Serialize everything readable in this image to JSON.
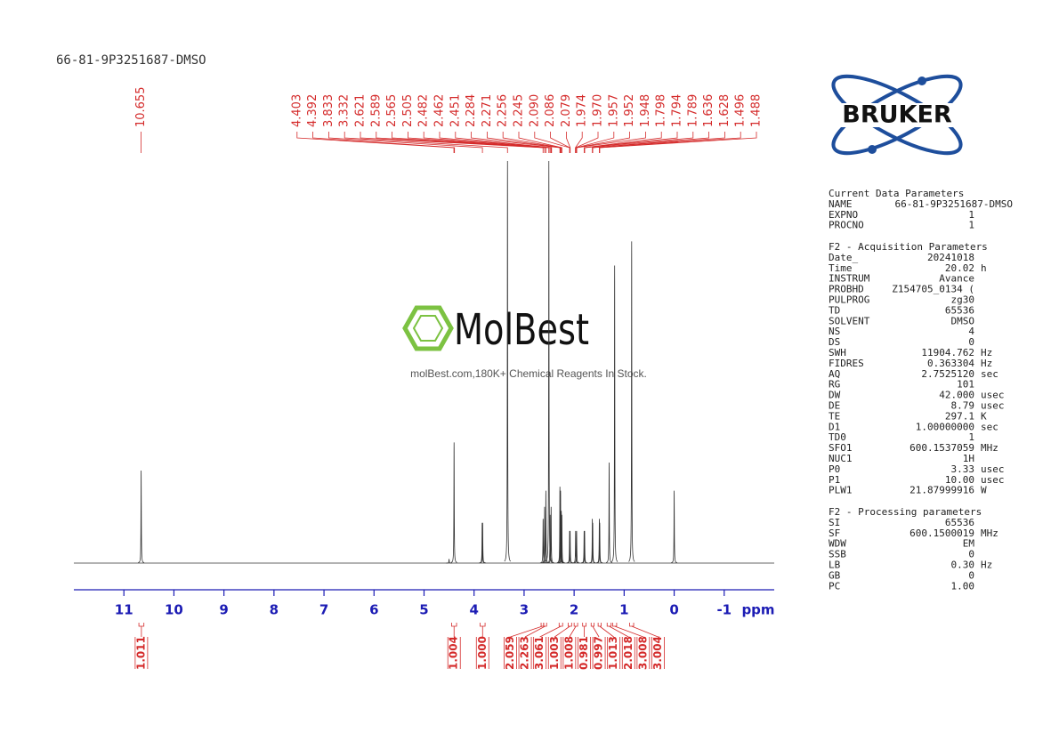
{
  "header": {
    "title": "66-81-9P3251687-DMSO"
  },
  "logo": {
    "text": "BRUKER"
  },
  "watermark": {
    "brand": "MolBest",
    "tagline": "molBest.com,180K+ Chemical Reagents In Stock."
  },
  "chart_data": {
    "type": "nmr",
    "x_label": "ppm",
    "xlim": [
      12,
      -2
    ],
    "ylim": [
      0,
      100
    ],
    "xticks": [
      11,
      10,
      9,
      8,
      7,
      6,
      5,
      4,
      3,
      2,
      1,
      0,
      -1
    ],
    "color": "#333333",
    "label_color": "#d42a2a",
    "axis_color": "#1c1cb4",
    "peak_label_groups": [
      [
        10.655
      ],
      [
        4.403,
        4.392,
        3.833,
        3.332,
        2.621,
        2.589,
        2.565,
        2.505,
        2.482,
        2.462,
        2.451,
        2.284,
        2.271,
        2.256,
        2.245,
        {
          "value": 2.09,
          "label": "2.090"
        },
        2.086,
        2.079,
        1.974,
        {
          "value": 1.97,
          "label": "1.970"
        },
        1.957,
        1.952,
        1.948,
        1.798,
        1.794,
        1.789,
        1.636,
        1.628,
        1.496,
        1.488
      ]
    ],
    "integral_groups": [
      [
        {
          "value": 1.011,
          "from": 10.7,
          "to": 10.6
        }
      ],
      [
        {
          "value": 1.004,
          "from": 4.45,
          "to": 4.35
        }
      ],
      [
        {
          "value": 1,
          "label": "1.000",
          "from": 3.88,
          "to": 3.78
        }
      ],
      [
        {
          "value": 2.059,
          "from": 2.66,
          "to": 2.61
        },
        {
          "value": 2.263,
          "from": 2.61,
          "to": 2.55
        },
        {
          "value": 3.061,
          "from": 2.3,
          "to": 2.23
        },
        {
          "value": 1.003,
          "from": 2.12,
          "to": 2.05
        },
        {
          "value": 1.008,
          "from": 2.0,
          "to": 1.93
        },
        {
          "value": 0.981,
          "from": 1.83,
          "to": 1.76
        },
        {
          "value": 0.997,
          "from": 1.66,
          "to": 1.6
        },
        {
          "value": 1.013,
          "from": 1.52,
          "to": 1.46
        },
        {
          "value": 2.018,
          "from": 1.34,
          "to": 1.26
        },
        {
          "value": 3.008,
          "from": 1.23,
          "to": 1.15
        },
        {
          "value": 3.004,
          "from": 0.89,
          "to": 0.81
        }
      ]
    ],
    "signals": [
      {
        "ppm": 10.655,
        "height": 23
      },
      {
        "ppm": 4.5,
        "height": 1
      },
      {
        "ppm": 4.4,
        "height": 30
      },
      {
        "ppm": 3.838,
        "height": 10
      },
      {
        "ppm": 3.828,
        "height": 10
      },
      {
        "ppm": 3.332,
        "height": 100
      },
      {
        "ppm": 2.62,
        "height": 11
      },
      {
        "ppm": 2.59,
        "height": 14
      },
      {
        "ppm": 2.565,
        "height": 18
      },
      {
        "ppm": 2.505,
        "height": 100
      },
      {
        "ppm": 2.48,
        "height": 12
      },
      {
        "ppm": 2.46,
        "height": 14
      },
      {
        "ppm": 2.284,
        "height": 19
      },
      {
        "ppm": 2.271,
        "height": 18
      },
      {
        "ppm": 2.256,
        "height": 13
      },
      {
        "ppm": 2.245,
        "height": 12
      },
      {
        "ppm": 2.09,
        "height": 8
      },
      {
        "ppm": 2.08,
        "height": 8
      },
      {
        "ppm": 1.97,
        "height": 8
      },
      {
        "ppm": 1.95,
        "height": 8
      },
      {
        "ppm": 1.8,
        "height": 8
      },
      {
        "ppm": 1.79,
        "height": 8
      },
      {
        "ppm": 1.636,
        "height": 11
      },
      {
        "ppm": 1.628,
        "height": 10
      },
      {
        "ppm": 1.496,
        "height": 11
      },
      {
        "ppm": 1.488,
        "height": 10
      },
      {
        "ppm": 1.3,
        "height": 25
      },
      {
        "ppm": 1.19,
        "height": 74
      },
      {
        "ppm": 0.85,
        "height": 80
      },
      {
        "ppm": 0.0,
        "height": 18
      }
    ]
  },
  "parameters": [
    {
      "title": "Current Data Parameters",
      "rows": [
        [
          "NAME",
          "66-81-9P3251687-DMSO"
        ],
        [
          "EXPNO",
          "1"
        ],
        [
          "PROCNO",
          "1"
        ]
      ]
    },
    {
      "title": "F2 - Acquisition Parameters",
      "rows": [
        [
          "Date_",
          "20241018"
        ],
        [
          "Time",
          "20.02",
          "h"
        ],
        [
          "INSTRUM",
          "Avance"
        ],
        [
          "PROBHD",
          "Z154705_0134 ("
        ],
        [
          "PULPROG",
          "zg30"
        ],
        [
          "TD",
          "65536"
        ],
        [
          "SOLVENT",
          "DMSO"
        ],
        [
          "NS",
          "4"
        ],
        [
          "DS",
          "0"
        ],
        [
          "SWH",
          "11904.762",
          "Hz"
        ],
        [
          "FIDRES",
          "0.363304",
          "Hz"
        ],
        [
          "AQ",
          "2.7525120",
          "sec"
        ],
        [
          "RG",
          "101"
        ],
        [
          "DW",
          "42.000",
          "usec"
        ],
        [
          "DE",
          "8.79",
          "usec"
        ],
        [
          "TE",
          "297.1",
          "K"
        ],
        [
          "D1",
          "1.00000000",
          "sec"
        ],
        [
          "TD0",
          "1"
        ],
        [
          "SFO1",
          "600.1537059",
          "MHz"
        ],
        [
          "NUC1",
          "1H"
        ],
        [
          "P0",
          "3.33",
          "usec"
        ],
        [
          "P1",
          "10.00",
          "usec"
        ],
        [
          "PLW1",
          "21.87999916",
          "W"
        ]
      ]
    },
    {
      "title": "F2 - Processing parameters",
      "rows": [
        [
          "SI",
          "65536"
        ],
        [
          "SF",
          "600.1500019",
          "MHz"
        ],
        [
          "WDW",
          "EM"
        ],
        [
          "SSB",
          "0"
        ],
        [
          "LB",
          "0.30",
          "Hz"
        ],
        [
          "GB",
          "0"
        ],
        [
          "PC",
          "1.00"
        ]
      ]
    }
  ]
}
